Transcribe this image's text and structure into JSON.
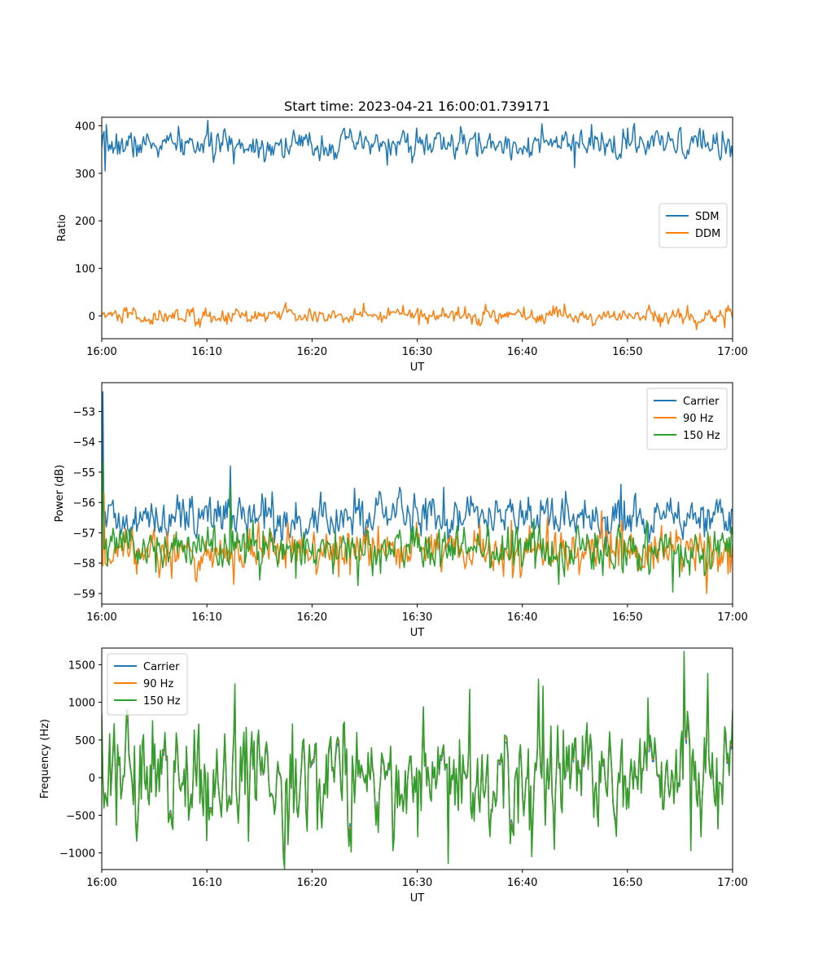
{
  "figure": {
    "title": "Start time: 2023-04-21 16:00:01.739171"
  },
  "chart_data": [
    {
      "type": "line",
      "title": "Start time: 2023-04-21 16:00:01.739171",
      "xlabel": "UT",
      "ylabel": "Ratio",
      "x_ticks": [
        "16:00",
        "16:10",
        "16:20",
        "16:30",
        "16:40",
        "16:50",
        "17:00"
      ],
      "xlim_minutes": [
        0,
        60
      ],
      "ylim": [
        -48,
        418
      ],
      "y_ticks": [
        0,
        100,
        200,
        300,
        400
      ],
      "legend_position": "center-right",
      "series": [
        {
          "name": "SDM",
          "color": "#1f77b4",
          "mean": 360,
          "spread": 14,
          "anchors": [
            [
              0,
              355
            ],
            [
              0.3,
              305
            ],
            [
              0.8,
              360
            ],
            [
              6.5,
              385
            ],
            [
              30,
              395
            ],
            [
              45,
              312
            ],
            [
              50,
              395
            ],
            [
              59,
              388
            ],
            [
              59.8,
              335
            ]
          ]
        },
        {
          "name": "DDM",
          "color": "#ff7f0e",
          "mean": 0,
          "spread": 8,
          "anchors": [
            [
              0,
              5
            ],
            [
              44,
              25
            ],
            [
              59.3,
              -25
            ]
          ]
        }
      ]
    },
    {
      "type": "line",
      "xlabel": "UT",
      "ylabel": "Power (dB)",
      "x_ticks": [
        "16:00",
        "16:10",
        "16:20",
        "16:30",
        "16:40",
        "16:50",
        "17:00"
      ],
      "xlim_minutes": [
        0,
        60
      ],
      "ylim": [
        -59.35,
        -52.05
      ],
      "y_ticks": [
        -59,
        -58,
        -57,
        -56,
        -55,
        -54,
        -53
      ],
      "legend_position": "top-right",
      "series": [
        {
          "name": "Carrier",
          "color": "#1f77b4",
          "mean": -56.5,
          "spread": 0.35,
          "anchors": [
            [
              0,
              -57.0
            ],
            [
              0.15,
              -52.35
            ],
            [
              0.35,
              -56.3
            ],
            [
              12.2,
              -54.8
            ],
            [
              32.5,
              -55.5
            ],
            [
              49.4,
              -55.4
            ],
            [
              58.5,
              -55.9
            ],
            [
              59.8,
              -57.0
            ]
          ]
        },
        {
          "name": "90 Hz",
          "color": "#ff7f0e",
          "mean": -57.6,
          "spread": 0.35,
          "anchors": [
            [
              0,
              -57.5
            ],
            [
              0.2,
              -55.7
            ],
            [
              0.5,
              -58.0
            ],
            [
              12.6,
              -58.7
            ],
            [
              39.0,
              -56.6
            ],
            [
              49.5,
              -56.6
            ],
            [
              57.5,
              -59.0
            ],
            [
              59.8,
              -58.3
            ]
          ]
        },
        {
          "name": "150 Hz",
          "color": "#2ca02c",
          "mean": -57.5,
          "spread": 0.35,
          "anchors": [
            [
              0,
              -57.5
            ],
            [
              0.15,
              -54.7
            ],
            [
              0.4,
              -57.2
            ],
            [
              12.2,
              -55.5
            ],
            [
              43.5,
              -58.7
            ],
            [
              54.3,
              -58.95
            ],
            [
              59.8,
              -57.8
            ]
          ]
        }
      ]
    },
    {
      "type": "line",
      "xlabel": "UT",
      "ylabel": "Frequency (Hz)",
      "x_ticks": [
        "16:00",
        "16:10",
        "16:20",
        "16:30",
        "16:40",
        "16:50",
        "17:00"
      ],
      "xlim_minutes": [
        0,
        60
      ],
      "ylim": [
        -1220,
        1720
      ],
      "y_ticks": [
        -1000,
        -500,
        0,
        500,
        1000,
        1500
      ],
      "legend_position": "top-left",
      "series": [
        {
          "name": "Carrier",
          "color": "#1f77b4",
          "offset": -50
        },
        {
          "name": "90 Hz",
          "color": "#ff7f0e",
          "offset": 0
        },
        {
          "name": "150 Hz",
          "color": "#2ca02c",
          "offset": 30
        }
      ],
      "mean": 0,
      "spread": 330,
      "anchors": [
        [
          0,
          800
        ],
        [
          12.7,
          1180
        ],
        [
          33.0,
          -1090
        ],
        [
          35.0,
          1110
        ],
        [
          42.0,
          1150
        ],
        [
          55.4,
          1590
        ],
        [
          56.0,
          -930
        ],
        [
          59.8,
          460
        ]
      ]
    }
  ]
}
